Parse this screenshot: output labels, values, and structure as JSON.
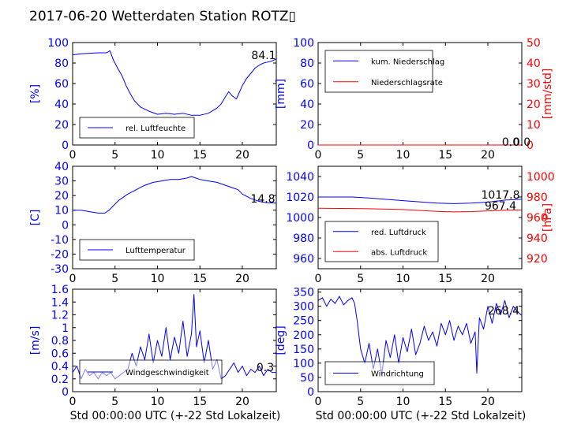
{
  "figure": {
    "title": "2017-06-20 Wetterdaten Station ROTZ▯",
    "xlabel": "Std 00:00:00 UTC (+-22 Std Lokalzeit)"
  },
  "colors": {
    "primary": "#0000ff",
    "secondary": "#ff0000",
    "axes": "#000000"
  },
  "chart_data": [
    {
      "type": "line",
      "xlim": [
        0,
        24
      ],
      "xticks": [
        0,
        5,
        10,
        15,
        20
      ],
      "ylim": [
        0,
        100
      ],
      "yticks": [
        0,
        20,
        40,
        60,
        80,
        100
      ],
      "ylabel": "[%]",
      "legend": {
        "placement": "lower-left",
        "entries": [
          "rel. Luftfeuchte"
        ]
      },
      "last_values": [
        "84.1"
      ],
      "series": [
        {
          "name": "rel. Luftfeuchte",
          "color": "#0000ff",
          "x": [
            0,
            1,
            2,
            3,
            4,
            4.4,
            4.8,
            5.3,
            5.8,
            6.3,
            6.8,
            7.3,
            8,
            9,
            10,
            11,
            12,
            13,
            14,
            15,
            16,
            17,
            17.5,
            18,
            18.4,
            18.8,
            19.3,
            20,
            20.5,
            21,
            21.5,
            22,
            22.5,
            23,
            23.5,
            24
          ],
          "y": [
            88,
            89,
            89.5,
            90,
            90,
            92,
            83,
            75,
            68,
            58,
            50,
            43,
            37,
            33,
            30,
            31,
            30,
            31,
            29,
            29,
            31,
            36,
            40,
            47,
            52,
            48,
            45,
            58,
            65,
            70,
            75,
            78,
            80,
            81,
            82,
            84.1
          ]
        }
      ]
    },
    {
      "type": "line",
      "xlim": [
        0,
        24
      ],
      "xticks": [
        0,
        5,
        10,
        15,
        20
      ],
      "ylim": [
        0,
        100
      ],
      "yticks": [
        0,
        20,
        40,
        60,
        80,
        100
      ],
      "ylabel": "[mm]",
      "ylim_right": [
        0,
        50
      ],
      "yticks_right": [
        0,
        10,
        20,
        30,
        40,
        50
      ],
      "ylabel_right": "[mm/std]",
      "legend": {
        "placement": "upper-left",
        "entries": [
          "kum. Niederschlag",
          "Niederschlagsrate"
        ]
      },
      "last_values": [
        "0.0",
        "0.0"
      ],
      "series": [
        {
          "name": "kum. Niederschlag",
          "axis": "left",
          "color": "#0000ff",
          "x": [
            0,
            24
          ],
          "y": [
            0,
            0
          ]
        },
        {
          "name": "Niederschlagsrate",
          "axis": "right",
          "color": "#ff0000",
          "x": [
            0,
            24
          ],
          "y": [
            0,
            0
          ]
        }
      ]
    },
    {
      "type": "line",
      "xlim": [
        0,
        24
      ],
      "xticks": [
        0,
        5,
        10,
        15,
        20
      ],
      "ylim": [
        -30,
        40
      ],
      "yticks": [
        -30,
        -20,
        -10,
        0,
        10,
        20,
        30,
        40
      ],
      "ylabel": "[C]",
      "legend": {
        "placement": "lower-left",
        "entries": [
          "Lufttemperatur"
        ]
      },
      "last_values": [
        "14.8"
      ],
      "series": [
        {
          "name": "Lufttemperatur",
          "color": "#0000ff",
          "x": [
            0,
            1,
            2,
            3,
            3.8,
            4.3,
            4.8,
            5.5,
            6.5,
            7.5,
            8.5,
            9.5,
            10.5,
            11.5,
            12.5,
            13.5,
            14,
            14.5,
            15,
            16,
            17,
            18,
            19,
            19.5,
            20,
            21,
            22,
            23,
            24
          ],
          "y": [
            10,
            10,
            9,
            8,
            8,
            10,
            13,
            17,
            21,
            24,
            27,
            29,
            30,
            31,
            31,
            32,
            33,
            32,
            31,
            30,
            29,
            27,
            25,
            24,
            21,
            18,
            16,
            15,
            14.8
          ]
        }
      ]
    },
    {
      "type": "line",
      "xlim": [
        0,
        24
      ],
      "xticks": [
        0,
        5,
        10,
        15,
        20
      ],
      "ylim": [
        950,
        1050
      ],
      "yticks": [
        960,
        980,
        1000,
        1020,
        1040
      ],
      "ylabel": "",
      "ylim_right": [
        910,
        1010
      ],
      "yticks_right": [
        920,
        940,
        960,
        980,
        1000
      ],
      "ylabel_right": "[hPa]",
      "legend": {
        "placement": "lower-left",
        "entries": [
          "red. Luftdruck",
          "abs. Luftdruck"
        ]
      },
      "last_values": [
        "1017.8",
        "967.4"
      ],
      "series": [
        {
          "name": "red. Luftdruck",
          "axis": "left",
          "color": "#0000ff",
          "x": [
            0,
            4,
            6,
            10,
            14,
            16,
            18,
            20,
            22,
            24
          ],
          "y": [
            1020,
            1020,
            1019,
            1016.5,
            1014,
            1013.5,
            1014,
            1015,
            1017,
            1017.8
          ]
        },
        {
          "name": "abs. Luftdruck",
          "axis": "right",
          "color": "#ff0000",
          "x": [
            0,
            4,
            6,
            10,
            14,
            16,
            18,
            20,
            22,
            24
          ],
          "y": [
            969,
            968.8,
            968.5,
            967.8,
            966,
            965.5,
            965.8,
            966.5,
            967,
            967.4
          ]
        }
      ]
    },
    {
      "type": "line",
      "xlim": [
        0,
        24
      ],
      "xticks": [
        0,
        5,
        10,
        15,
        20
      ],
      "ylim": [
        0,
        1.6
      ],
      "yticks": [
        0,
        0.2,
        0.4,
        0.6,
        0.8,
        1.0,
        1.2,
        1.4,
        1.6
      ],
      "ylabel": "[m/s]",
      "legend": {
        "placement": "lower-left",
        "entries": [
          "Windgeschwindigkeit"
        ]
      },
      "last_values": [
        "0.3"
      ],
      "series": [
        {
          "name": "Windgeschwindigkeit",
          "color": "#0000ff",
          "x": [
            0,
            0.5,
            1,
            1.5,
            2,
            2.5,
            3,
            3.5,
            4,
            4.5,
            5,
            5.5,
            6,
            6.5,
            7,
            7.5,
            8,
            8.5,
            9,
            9.5,
            10,
            10.5,
            11,
            11.5,
            12,
            12.5,
            13,
            13.5,
            14,
            14.3,
            14.6,
            15,
            15.5,
            16,
            16.5,
            17,
            17.5,
            18,
            18.5,
            19,
            19.5,
            20,
            20.5,
            21,
            21.5,
            22,
            22.5,
            23,
            23.5,
            24
          ],
          "y": [
            0.3,
            0.4,
            0.2,
            0.35,
            0.25,
            0.3,
            0.2,
            0.3,
            0.25,
            0.3,
            0.2,
            0.25,
            0.3,
            0.35,
            0.6,
            0.4,
            0.7,
            0.5,
            0.9,
            0.45,
            0.8,
            0.55,
            1.0,
            0.5,
            0.85,
            0.6,
            1.1,
            0.55,
            0.9,
            1.52,
            0.7,
            0.95,
            0.45,
            0.8,
            0.35,
            0.5,
            0.2,
            0.25,
            0.35,
            0.45,
            0.3,
            0.4,
            0.25,
            0.35,
            0.3,
            0.4,
            0.25,
            0.35,
            0.3,
            0.3
          ]
        }
      ]
    },
    {
      "type": "line",
      "xlim": [
        0,
        24
      ],
      "xticks": [
        0,
        5,
        10,
        15,
        20
      ],
      "ylim": [
        0,
        360
      ],
      "yticks": [
        0,
        50,
        100,
        150,
        200,
        250,
        300,
        350
      ],
      "ylabel": "[deg]",
      "legend": {
        "placement": "lower-left",
        "entries": [
          "Windrichtung"
        ]
      },
      "last_values": [
        "268.4"
      ],
      "series": [
        {
          "name": "Windrichtung",
          "color": "#0000ff",
          "x": [
            0,
            0.5,
            1,
            1.5,
            2,
            2.5,
            3,
            3.5,
            4,
            4.3,
            4.6,
            5,
            5.5,
            6,
            6.5,
            7,
            7.5,
            8,
            8.5,
            9,
            9.5,
            10,
            10.5,
            11,
            11.5,
            12,
            12.5,
            13,
            13.5,
            14,
            14.5,
            15,
            15.5,
            16,
            16.5,
            17,
            17.5,
            18,
            18.5,
            18.7,
            19,
            19.5,
            20,
            20.5,
            21,
            21.5,
            22,
            22.5,
            23,
            23.5,
            24
          ],
          "y": [
            320,
            330,
            300,
            325,
            310,
            335,
            305,
            320,
            330,
            310,
            250,
            150,
            100,
            170,
            80,
            150,
            60,
            180,
            120,
            200,
            100,
            190,
            140,
            220,
            130,
            170,
            230,
            180,
            210,
            160,
            240,
            200,
            250,
            180,
            230,
            200,
            240,
            170,
            210,
            65,
            260,
            220,
            300,
            240,
            310,
            270,
            320,
            260,
            300,
            280,
            268
          ]
        }
      ]
    }
  ]
}
